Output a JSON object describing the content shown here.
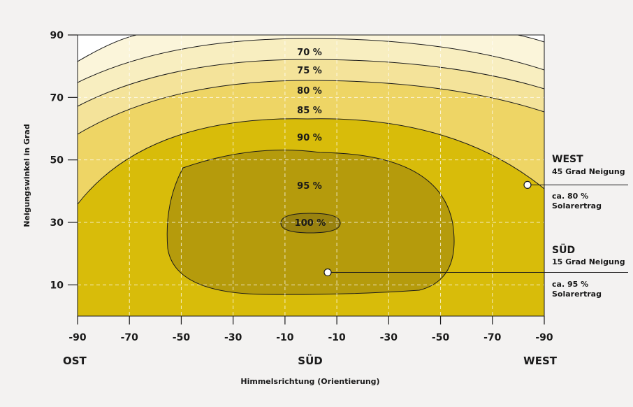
{
  "chart_data": {
    "type": "heatmap",
    "subtype": "contour",
    "xlabel": "Himmelsrichtung (Orientierung)",
    "ylabel": "Neigungswinkel in Grad",
    "x_ticks": [
      "-90",
      "-70",
      "-50",
      "-30",
      "-10",
      "-10",
      "-30",
      "-50",
      "-70",
      "-90"
    ],
    "y_ticks": [
      "90",
      "70",
      "50",
      "30",
      "10"
    ],
    "y_tick_values": [
      90,
      70,
      50,
      30,
      10
    ],
    "ylim": [
      0,
      90
    ],
    "direction_labels": [
      "OST",
      "SÜD",
      "WEST"
    ],
    "grid": true,
    "levels": [
      {
        "label": "70 %",
        "value": 70,
        "color": "#fbf5da"
      },
      {
        "label": "75 %",
        "value": 75,
        "color": "#f8eec0"
      },
      {
        "label": "80 %",
        "value": 80,
        "color": "#f4e39a"
      },
      {
        "label": "85 %",
        "value": 85,
        "color": "#eed565"
      },
      {
        "label": "90 %",
        "value": 90,
        "color": "#d8bc0a"
      },
      {
        "label": "95 %",
        "value": 95,
        "color": "#b59b0c"
      },
      {
        "label": "100 %",
        "value": 100,
        "color": "#99820f"
      }
    ],
    "base_color": "#ffffff",
    "annotations": [
      {
        "heading": "WEST",
        "line1": "45 Grad Neigung",
        "value_text": "ca. 80 %",
        "value_sub": "Solarertrag",
        "tilt": 42
      },
      {
        "heading": "SÜD",
        "line1": "15 Grad Neigung",
        "value_text": "ca. 95 %",
        "value_sub": "Solarertrag",
        "tilt": 14
      }
    ]
  }
}
